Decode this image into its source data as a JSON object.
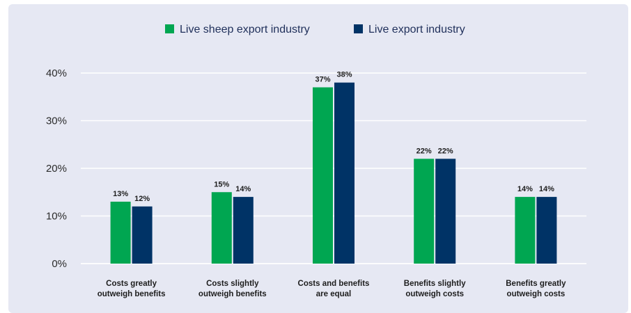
{
  "chart_data": {
    "type": "bar",
    "categories": [
      [
        "Costs greatly",
        "outweigh benefits"
      ],
      [
        "Costs slightly",
        "outweigh benefits"
      ],
      [
        "Costs and benefits",
        "are equal"
      ],
      [
        "Benefits slightly",
        "outweigh costs"
      ],
      [
        "Benefits greatly",
        "outweigh costs"
      ]
    ],
    "series": [
      {
        "name": "Live sheep export industry",
        "color": "#00a651",
        "values": [
          13,
          15,
          37,
          22,
          14
        ],
        "labels": [
          "13%",
          "15%",
          "37%",
          "22%",
          "14%"
        ]
      },
      {
        "name": "Live export industry",
        "color": "#003366",
        "values": [
          12,
          14,
          38,
          22,
          14
        ],
        "labels": [
          "12%",
          "14%",
          "38%",
          "22%",
          "14%"
        ]
      }
    ],
    "yticks": [
      0,
      10,
      20,
      30,
      40
    ],
    "ytick_labels": [
      "0%",
      "10%",
      "20%",
      "30%",
      "40%"
    ],
    "ylim": [
      0,
      40
    ],
    "grid": true,
    "legend_position": "top-center",
    "title": "",
    "xlabel": "",
    "ylabel": ""
  }
}
